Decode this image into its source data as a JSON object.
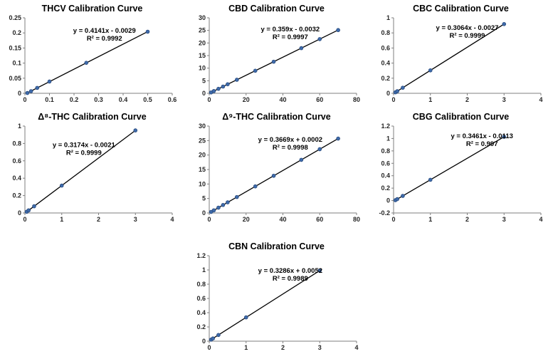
{
  "figure": {
    "background": "#ffffff"
  },
  "style": {
    "axis_color": "#7f7f7f",
    "trendline_color": "#000000",
    "marker_color": "#3f6bab",
    "marker_edge_color": "#27497c",
    "text_color": "#262626"
  },
  "chart_data": [
    {
      "id": "thcv",
      "type": "scatter",
      "title": "THCV Calibration Curve",
      "equation": "y = 0.4141x - 0.0029",
      "r_squared": "R² = 0.9992",
      "x": [
        0.01,
        0.025,
        0.05,
        0.1,
        0.25,
        0.5
      ],
      "y": [
        0.001,
        0.007,
        0.018,
        0.039,
        0.101,
        0.204
      ],
      "xlim": [
        0,
        0.6
      ],
      "ylim": [
        0,
        0.25
      ],
      "x_ticks": [
        "0",
        "0.1",
        "0.2",
        "0.3",
        "0.4",
        "0.5",
        "0.6"
      ],
      "y_ticks": [
        "0",
        "0.05",
        "0.1",
        "0.15",
        "0.2",
        "0.25"
      ],
      "trendline": {
        "slope": 0.4141,
        "intercept": -0.0029
      },
      "grid": false,
      "legend": "none",
      "annotation_pos": {
        "fx": 0.54,
        "fy": 0.2
      }
    },
    {
      "id": "cbd",
      "type": "scatter",
      "title": "CBD Calibration Curve",
      "equation": "y = 0.359x - 0.0032",
      "r_squared": "R² = 0.9997",
      "x": [
        1,
        2.5,
        5,
        7.5,
        10,
        15,
        25,
        35,
        50,
        60,
        70
      ],
      "y": [
        0.356,
        0.894,
        1.792,
        2.689,
        3.587,
        5.382,
        8.972,
        12.562,
        17.947,
        21.537,
        25.127
      ],
      "xlim": [
        0,
        80
      ],
      "ylim": [
        0,
        30
      ],
      "x_ticks": [
        "0",
        "20",
        "40",
        "60",
        "80"
      ],
      "y_ticks": [
        "0",
        "5",
        "10",
        "15",
        "20",
        "25",
        "30"
      ],
      "trendline": {
        "slope": 0.359,
        "intercept": -0.0032
      },
      "grid": false,
      "legend": "none",
      "annotation_pos": {
        "fx": 0.55,
        "fy": 0.18
      }
    },
    {
      "id": "cbc",
      "type": "scatter",
      "title": "CBC Calibration Curve",
      "equation": "y = 0.3064x - 0.0027",
      "r_squared": "R² = 0.9999",
      "x": [
        0.05,
        0.1,
        0.25,
        1,
        3
      ],
      "y": [
        0.013,
        0.028,
        0.074,
        0.304,
        0.917
      ],
      "xlim": [
        0,
        4
      ],
      "ylim": [
        0,
        1
      ],
      "x_ticks": [
        "0",
        "1",
        "2",
        "3",
        "4"
      ],
      "y_ticks": [
        "0",
        "0.2",
        "0.4",
        "0.6",
        "0.8",
        "1"
      ],
      "trendline": {
        "slope": 0.3064,
        "intercept": -0.0027
      },
      "grid": false,
      "legend": "none",
      "annotation_pos": {
        "fx": 0.5,
        "fy": 0.16
      }
    },
    {
      "id": "d8-thc",
      "type": "scatter",
      "title": "Δ⁸-THC Calibration Curve",
      "equation": "y = 0.3174x - 0.0021",
      "r_squared": "R² = 0.9999",
      "x": [
        0.05,
        0.1,
        0.25,
        1,
        3
      ],
      "y": [
        0.014,
        0.03,
        0.077,
        0.315,
        0.95
      ],
      "xlim": [
        0,
        4
      ],
      "ylim": [
        0,
        1
      ],
      "x_ticks": [
        "0",
        "1",
        "2",
        "3",
        "4"
      ],
      "y_ticks": [
        "0",
        "0.2",
        "0.4",
        "0.6",
        "0.8",
        "1"
      ],
      "trendline": {
        "slope": 0.3174,
        "intercept": -0.0021
      },
      "grid": false,
      "legend": "none",
      "annotation_pos": {
        "fx": 0.4,
        "fy": 0.24
      }
    },
    {
      "id": "d9-thc",
      "type": "scatter",
      "title": "Δ⁹-THC Calibration Curve",
      "equation": "y = 0.3669x + 0.0002",
      "r_squared": "R² = 0.9998",
      "x": [
        1,
        2.5,
        5,
        7.5,
        10,
        15,
        25,
        35,
        50,
        60,
        70
      ],
      "y": [
        0.367,
        0.918,
        1.835,
        2.752,
        3.669,
        5.504,
        9.173,
        12.842,
        18.345,
        22.014,
        25.683
      ],
      "xlim": [
        0,
        80
      ],
      "ylim": [
        0,
        30
      ],
      "x_ticks": [
        "0",
        "20",
        "40",
        "60",
        "80"
      ],
      "y_ticks": [
        "0",
        "5",
        "10",
        "15",
        "20",
        "25",
        "30"
      ],
      "trendline": {
        "slope": 0.3669,
        "intercept": 0.0002
      },
      "grid": false,
      "legend": "none",
      "annotation_pos": {
        "fx": 0.55,
        "fy": 0.18
      }
    },
    {
      "id": "cbg",
      "type": "scatter",
      "title": "CBG Calibration Curve",
      "equation": "y = 0.3461x - 0.0113",
      "r_squared": "R² = 0.997",
      "x": [
        0.05,
        0.1,
        0.25,
        1,
        3
      ],
      "y": [
        0.006,
        0.023,
        0.075,
        0.335,
        1.027
      ],
      "xlim": [
        0,
        4
      ],
      "ylim": [
        -0.2,
        1.2
      ],
      "x_ticks": [
        "0",
        "1",
        "2",
        "3",
        "4"
      ],
      "y_ticks": [
        "-0.2",
        "0",
        "0.2",
        "0.4",
        "0.6",
        "0.8",
        "1",
        "1.2"
      ],
      "trendline": {
        "slope": 0.3461,
        "intercept": -0.0113
      },
      "grid": false,
      "legend": "none",
      "annotation_pos": {
        "fx": 0.6,
        "fy": 0.14
      }
    },
    {
      "id": "cbn",
      "type": "scatter",
      "title": "CBN Calibration Curve",
      "equation": "y = 0.3286x + 0.0052",
      "r_squared": "R² = 0.9989",
      "x": [
        0.05,
        0.1,
        0.25,
        1,
        3
      ],
      "y": [
        0.022,
        0.038,
        0.087,
        0.334,
        0.991
      ],
      "xlim": [
        0,
        4
      ],
      "ylim": [
        0,
        1.2
      ],
      "x_ticks": [
        "0",
        "1",
        "2",
        "3",
        "4"
      ],
      "y_ticks": [
        "0",
        "0.2",
        "0.4",
        "0.6",
        "0.8",
        "1",
        "1.2"
      ],
      "trendline": {
        "slope": 0.3286,
        "intercept": 0.0052
      },
      "grid": false,
      "legend": "none",
      "annotation_pos": {
        "fx": 0.55,
        "fy": 0.2
      }
    }
  ]
}
